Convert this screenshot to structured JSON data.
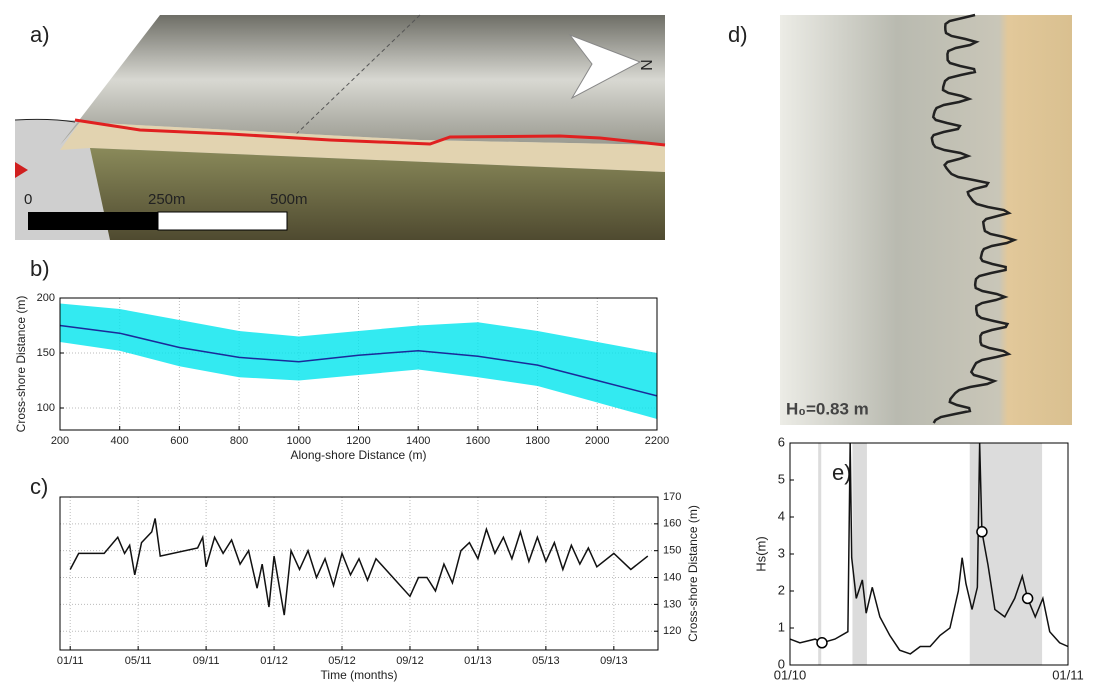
{
  "panel_labels": [
    "a)",
    "b)",
    "c)",
    "d)",
    "e)"
  ],
  "map": {
    "scale_labels": [
      "0",
      "250m",
      "500m"
    ],
    "north": "N"
  },
  "photo": {
    "annotation": "H₀=0.83 m"
  },
  "chart_data": [
    {
      "type": "line",
      "xlabel": "Along-shore Distance (m)",
      "ylabel": "Cross-shore Distance (m)",
      "xlim": [
        200,
        2200
      ],
      "ylim": [
        80,
        200
      ],
      "xticks": [
        200,
        400,
        600,
        800,
        1000,
        1200,
        1400,
        1600,
        1800,
        2000,
        2200
      ],
      "yticks": [
        100,
        150,
        200
      ],
      "grid": true,
      "band": {
        "color": "#00e5ee",
        "x": [
          200,
          400,
          600,
          800,
          1000,
          1200,
          1400,
          1600,
          1800,
          2000,
          2200
        ],
        "upper": [
          195,
          190,
          180,
          170,
          165,
          170,
          175,
          178,
          170,
          160,
          150
        ],
        "lower": [
          160,
          152,
          138,
          128,
          125,
          130,
          135,
          128,
          120,
          105,
          90
        ]
      },
      "series": [
        {
          "color": "#1a2a9a",
          "x": [
            200,
            400,
            600,
            800,
            1000,
            1200,
            1400,
            1600,
            1800,
            2000,
            2200
          ],
          "values": [
            175,
            168,
            155,
            146,
            142,
            148,
            152,
            147,
            139,
            125,
            111
          ]
        }
      ]
    },
    {
      "type": "line",
      "xlabel": "Time (months)",
      "ylabel": "Cross-shore Distance (m)",
      "yaxis_side": "right",
      "xlim": [
        -0.6,
        34.6
      ],
      "ylim": [
        113,
        170
      ],
      "xticks": [
        {
          "value": 0,
          "label": "01/11"
        },
        {
          "value": 4,
          "label": "05/11"
        },
        {
          "value": 8,
          "label": "09/11"
        },
        {
          "value": 12,
          "label": "01/12"
        },
        {
          "value": 16,
          "label": "05/12"
        },
        {
          "value": 20,
          "label": "09/12"
        },
        {
          "value": 24,
          "label": "01/13"
        },
        {
          "value": 28,
          "label": "05/13"
        },
        {
          "value": 32,
          "label": "09/13"
        }
      ],
      "yticks": [
        120,
        130,
        140,
        150,
        160,
        170
      ],
      "grid": true,
      "series": [
        {
          "color": "#111",
          "x": [
            0,
            0.5,
            2,
            2.8,
            3.2,
            3.5,
            3.8,
            4.2,
            4.8,
            5,
            5.3,
            7.5,
            7.8,
            8,
            8.5,
            9,
            9.5,
            10,
            10.5,
            11,
            11.3,
            11.7,
            12,
            12.6,
            13,
            13.5,
            14,
            14.5,
            15,
            15.5,
            16,
            16.5,
            17,
            17.5,
            18,
            19,
            20,
            20.5,
            21,
            21.5,
            22,
            22.5,
            23,
            23.5,
            24,
            24.5,
            25,
            25.5,
            26,
            26.5,
            27,
            27.5,
            28,
            28.5,
            29,
            29.5,
            30,
            30.5,
            31,
            32,
            33,
            34
          ],
          "values": [
            143,
            149,
            149,
            155,
            149,
            152,
            141,
            153,
            157,
            162,
            148,
            151,
            155,
            144,
            155,
            149,
            154,
            145,
            150,
            136,
            145,
            129,
            148,
            126,
            150,
            143,
            150,
            140,
            147,
            137,
            149,
            141,
            147,
            139,
            147,
            140,
            133,
            140,
            140,
            135,
            145,
            138,
            150,
            153,
            147,
            158,
            149,
            155,
            147,
            157,
            146,
            155,
            146,
            153,
            143,
            152,
            145,
            151,
            144,
            149,
            143,
            148
          ]
        }
      ]
    },
    {
      "type": "line",
      "ylabel": "Hs(m)",
      "xlim": [
        0,
        365
      ],
      "ylim": [
        0,
        6
      ],
      "xticks": [
        {
          "value": 0,
          "label": "01/10"
        },
        {
          "value": 365,
          "label": "01/11"
        }
      ],
      "yticks": [
        0,
        1,
        2,
        3,
        4,
        5,
        6
      ],
      "grid": false,
      "shading": {
        "color": "#dcdcdc",
        "ranges": [
          [
            37,
            41
          ],
          [
            82,
            101
          ],
          [
            236,
            331
          ]
        ]
      },
      "series": [
        {
          "color": "#111",
          "x": [
            0,
            13,
            33,
            42,
            59,
            76,
            79,
            81,
            87,
            95,
            100,
            108,
            118,
            131,
            144,
            158,
            171,
            184,
            197,
            210,
            221,
            226,
            231,
            239,
            246,
            249,
            252,
            260,
            269,
            282,
            295,
            305,
            312,
            322,
            332,
            341,
            354,
            365
          ],
          "values": [
            0.7,
            0.6,
            0.7,
            0.6,
            0.7,
            0.9,
            6,
            2.9,
            1.8,
            2.3,
            1.4,
            2.1,
            1.3,
            0.8,
            0.4,
            0.3,
            0.5,
            0.5,
            0.8,
            1.0,
            2.0,
            2.9,
            2.2,
            1.5,
            2.1,
            6,
            3.6,
            2.7,
            1.5,
            1.3,
            1.8,
            2.4,
            1.8,
            1.3,
            1.8,
            0.9,
            0.6,
            0.5
          ]
        }
      ],
      "markers": {
        "x": [
          42,
          252,
          312
        ],
        "values": [
          0.6,
          3.6,
          1.8
        ]
      }
    }
  ]
}
